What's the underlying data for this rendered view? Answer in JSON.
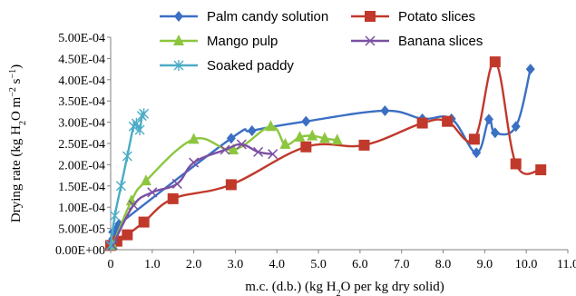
{
  "chart_data": {
    "type": "line",
    "title": "",
    "xlabel_parts": [
      "m.c. (d.b.) (kg H",
      "2",
      "O per kg dry solid)"
    ],
    "ylabel_parts": [
      "Drying rate (kg H",
      "2",
      "O m",
      "−2",
      " s",
      "−1",
      ")"
    ],
    "xlim": [
      0,
      11
    ],
    "ylim": [
      0,
      0.0005
    ],
    "x_ticks": [
      "0",
      "1.0",
      "2.0",
      "3.0",
      "4.0",
      "5.0",
      "6.0",
      "7.0",
      "8.0",
      "9.0",
      "10.0",
      "11.0"
    ],
    "y_ticks": [
      "0.00E+00",
      "5.00E-05",
      "1.00E-04",
      "1.50E-04",
      "2.00E-04",
      "2.50E-04",
      "3.00E-04",
      "3.50E-04",
      "4.00E-04",
      "4.50E-04",
      "5.00E-04"
    ],
    "legend_position": "top",
    "series": [
      {
        "name": "Palm candy solution",
        "color": "#3b6fc4",
        "marker": "diamond",
        "points": [
          [
            0.0,
            1e-05
          ],
          [
            0.05,
            2.5e-05
          ],
          [
            0.1,
            4e-05
          ],
          [
            0.15,
            5e-05
          ],
          [
            0.2,
            6e-05
          ],
          [
            2.9,
            0.000262
          ],
          [
            3.4,
            0.00028
          ],
          [
            4.7,
            0.000302
          ],
          [
            6.6,
            0.000327
          ],
          [
            7.5,
            0.000308
          ],
          [
            8.2,
            0.000308
          ],
          [
            8.8,
            0.000228
          ],
          [
            9.1,
            0.000307
          ],
          [
            9.25,
            0.000275
          ],
          [
            9.75,
            0.00029
          ],
          [
            10.1,
            0.000425
          ]
        ]
      },
      {
        "name": "Potato slices",
        "color": "#c0392b",
        "marker": "square",
        "points": [
          [
            0.0,
            1e-05
          ],
          [
            0.15,
            2e-05
          ],
          [
            0.4,
            3.5e-05
          ],
          [
            0.8,
            6.5e-05
          ],
          [
            1.5,
            0.00012
          ],
          [
            2.9,
            0.000153
          ],
          [
            4.7,
            0.000242
          ],
          [
            6.1,
            0.000246
          ],
          [
            7.5,
            0.000298
          ],
          [
            8.1,
            0.000302
          ],
          [
            8.75,
            0.00026
          ],
          [
            9.25,
            0.000442
          ],
          [
            9.75,
            0.000202
          ],
          [
            10.35,
            0.000188
          ]
        ]
      },
      {
        "name": "Mango pulp",
        "color": "#8cc63f",
        "marker": "triangle",
        "points": [
          [
            0.05,
            1e-05
          ],
          [
            0.5,
            0.000115
          ],
          [
            0.85,
            0.000162
          ],
          [
            2.0,
            0.00026
          ],
          [
            2.95,
            0.000235
          ],
          [
            3.85,
            0.00029
          ],
          [
            4.2,
            0.000248
          ],
          [
            4.55,
            0.000265
          ],
          [
            4.85,
            0.000268
          ],
          [
            5.15,
            0.000262
          ],
          [
            5.45,
            0.000258
          ]
        ]
      },
      {
        "name": "Banana slices",
        "color": "#7b4fa3",
        "marker": "x",
        "points": [
          [
            0.05,
            1e-05
          ],
          [
            0.55,
            0.000105
          ],
          [
            1.0,
            0.000135
          ],
          [
            1.6,
            0.000155
          ],
          [
            2.0,
            0.000205
          ],
          [
            2.75,
            0.000235
          ],
          [
            3.15,
            0.000248
          ],
          [
            3.55,
            0.00023
          ],
          [
            3.9,
            0.000225
          ]
        ]
      },
      {
        "name": "Soaked paddy",
        "color": "#4bacc6",
        "marker": "asterisk",
        "points": [
          [
            0.0,
            1e-05
          ],
          [
            0.1,
            8e-05
          ],
          [
            0.25,
            0.00015
          ],
          [
            0.4,
            0.00022
          ],
          [
            0.55,
            0.00029
          ],
          [
            0.62,
            0.000297
          ],
          [
            0.7,
            0.000282
          ],
          [
            0.75,
            0.000315
          ],
          [
            0.8,
            0.00032
          ]
        ]
      }
    ]
  }
}
